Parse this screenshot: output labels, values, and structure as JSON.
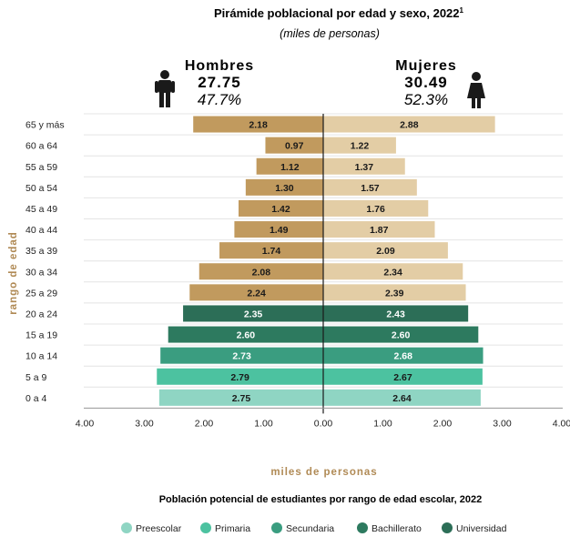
{
  "chart_data": {
    "type": "bar",
    "title": "Pirámide poblacional por edad y sexo, 2022",
    "title_superscript": "1",
    "subtitle": "(miles de personas)",
    "men": {
      "label": "Hombres",
      "total": "27.75",
      "pct": "47.7%"
    },
    "women": {
      "label": "Mujeres",
      "total": "30.49",
      "pct": "52.3%"
    },
    "categories": [
      "65 y más",
      "60 a 64",
      "55 a 59",
      "50 a 54",
      "45 a 49",
      "40 a 44",
      "35 a 39",
      "30 a 34",
      "25 a 29",
      "20 a 24",
      "15 a 19",
      "10 a 14",
      "5 a 9",
      "0 a 4"
    ],
    "series": [
      {
        "name": "Hombres",
        "values": [
          2.18,
          0.97,
          1.12,
          1.3,
          1.42,
          1.49,
          1.74,
          2.08,
          2.24,
          2.35,
          2.6,
          2.73,
          2.79,
          2.75
        ]
      },
      {
        "name": "Mujeres",
        "values": [
          2.88,
          1.22,
          1.37,
          1.57,
          1.76,
          1.87,
          2.09,
          2.34,
          2.39,
          2.43,
          2.6,
          2.68,
          2.67,
          2.64
        ]
      }
    ],
    "value_labels_men": [
      "2.18",
      "0.97",
      "1.12",
      "1.30",
      "1.42",
      "1.49",
      "1.74",
      "2.08",
      "2.24",
      "2.35",
      "2.60",
      "2.73",
      "2.79",
      "2.75"
    ],
    "value_labels_women": [
      "2.88",
      "1.22",
      "1.37",
      "1.57",
      "1.76",
      "1.87",
      "2.09",
      "2.34",
      "2.39",
      "2.43",
      "2.60",
      "2.68",
      "2.67",
      "2.64"
    ],
    "school_level_by_row": [
      null,
      null,
      null,
      null,
      null,
      null,
      null,
      null,
      null,
      "Universidad",
      "Bachillerato",
      "Secundaria",
      "Primaria",
      "Preescolar"
    ],
    "xlim": [
      -4,
      4
    ],
    "x_ticks": [
      "4.00",
      "3.00",
      "2.00",
      "1.00",
      "0.00",
      "1.00",
      "2.00",
      "3.00",
      "4.00"
    ],
    "xlabel": "miles de personas",
    "ylabel": "rango de edad",
    "legend_title": "Población potencial de estudiantes por rango de edad escolar, 2022",
    "legend": [
      {
        "name": "Preescolar",
        "color": "#8fd5c3"
      },
      {
        "name": "Primaria",
        "color": "#4cc2a0"
      },
      {
        "name": "Secundaria",
        "color": "#3a9d80"
      },
      {
        "name": "Bachillerato",
        "color": "#2d7a5f"
      },
      {
        "name": "Universidad",
        "color": "#2c6e57"
      }
    ],
    "legend_position": "bottom",
    "colors": {
      "men": "#c19a5e",
      "women": "#e3cda5"
    }
  }
}
